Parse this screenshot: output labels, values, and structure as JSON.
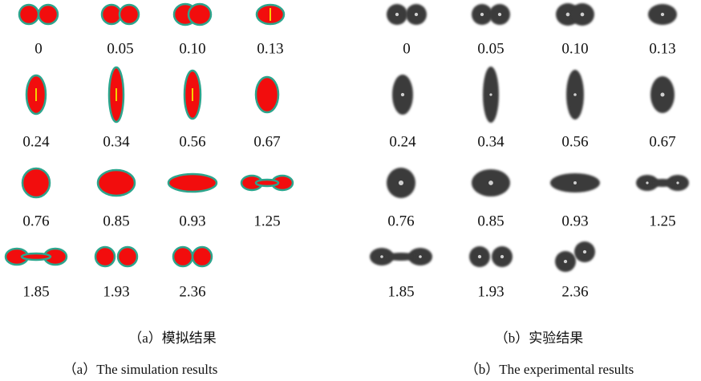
{
  "panels": [
    {
      "frames": [
        "0",
        "0.05",
        "0.10",
        "0.13",
        "0.24",
        "0.34",
        "0.56",
        "0.67",
        "0.76",
        "0.85",
        "0.93",
        "1.25",
        "1.85",
        "1.93",
        "2.36"
      ],
      "caption_zh": "（a）模拟结果",
      "caption_en": "（a）The simulation results"
    },
    {
      "frames": [
        "0",
        "0.05",
        "0.10",
        "0.13",
        "0.24",
        "0.34",
        "0.56",
        "0.67",
        "0.76",
        "0.85",
        "0.93",
        "1.25",
        "1.85",
        "1.93",
        "2.36"
      ],
      "caption_zh": "（b）实验结果",
      "caption_en": "（b）The experimental results"
    }
  ]
}
